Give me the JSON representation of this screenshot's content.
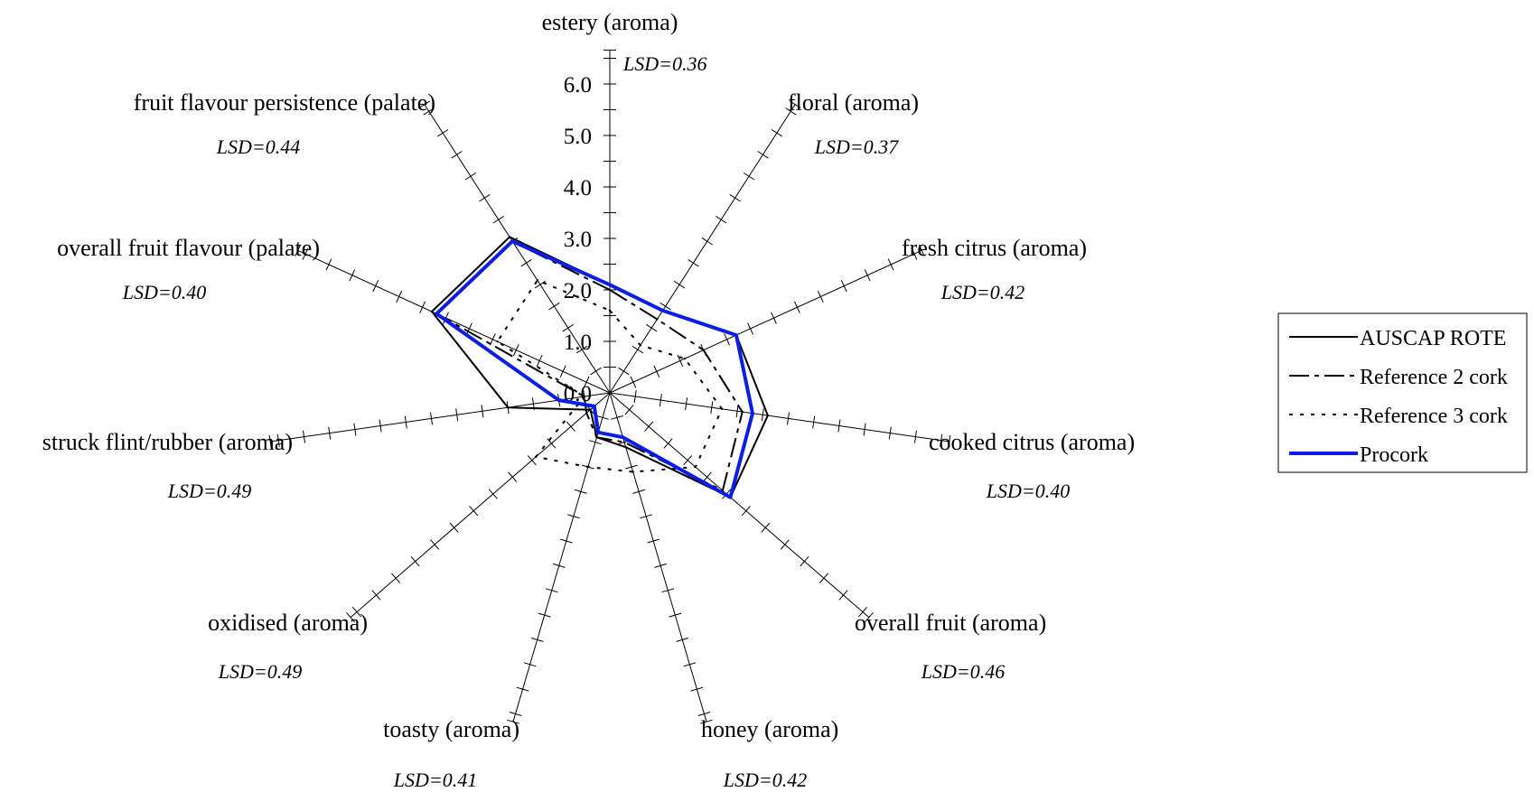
{
  "chart_data": {
    "type": "radar",
    "rmax": 6.0,
    "ticks": [
      "0.0",
      "1.0",
      "2.0",
      "3.0",
      "4.0",
      "5.0",
      "6.0"
    ],
    "minor_tick_step": 0.5,
    "axes": [
      {
        "label": "estery (aroma)",
        "lsd": "LSD=0.36"
      },
      {
        "label": "floral (aroma)",
        "lsd": "LSD=0.37"
      },
      {
        "label": "fresh citrus (aroma)",
        "lsd": "LSD=0.42"
      },
      {
        "label": "cooked citrus (aroma)",
        "lsd": "LSD=0.40"
      },
      {
        "label": "overall fruit (aroma)",
        "lsd": "LSD=0.46"
      },
      {
        "label": "honey (aroma)",
        "lsd": "LSD=0.42"
      },
      {
        "label": "toasty (aroma)",
        "lsd": "LSD=0.41"
      },
      {
        "label": "oxidised (aroma)",
        "lsd": "LSD=0.49"
      },
      {
        "label": "struck flint/rubber (aroma)",
        "lsd": "LSD=0.49"
      },
      {
        "label": "overall fruit flavour (palate)",
        "lsd": "LSD=0.40"
      },
      {
        "label": "fruit flavour persistence (palate)",
        "lsd": "LSD=0.44"
      }
    ],
    "series": [
      {
        "name": "AUSCAP ROTE",
        "color": "#000000",
        "dash": "",
        "width": 2,
        "values": [
          2.1,
          1.9,
          2.7,
          3.1,
          3.1,
          1.1,
          0.9,
          0.5,
          2.0,
          3.8,
          3.6
        ]
      },
      {
        "name": "Reference 2 cork",
        "color": "#000000",
        "dash": "22,6,5,6",
        "width": 2,
        "values": [
          2.0,
          1.7,
          2.0,
          2.6,
          2.9,
          1.0,
          0.9,
          0.6,
          0.5,
          3.7,
          3.5
        ]
      },
      {
        "name": "Reference 3 cork",
        "color": "#000000",
        "dash": "4,8",
        "width": 2,
        "values": [
          1.6,
          1.1,
          1.6,
          2.2,
          2.2,
          1.6,
          1.5,
          1.9,
          0.5,
          2.4,
          2.6
        ]
      },
      {
        "name": "Procork",
        "color": "#0a1ee6",
        "dash": "",
        "width": 4,
        "values": [
          2.1,
          1.9,
          2.7,
          2.8,
          3.1,
          0.9,
          0.8,
          0.4,
          1.0,
          3.7,
          3.5
        ]
      }
    ],
    "legend_position": "right"
  }
}
